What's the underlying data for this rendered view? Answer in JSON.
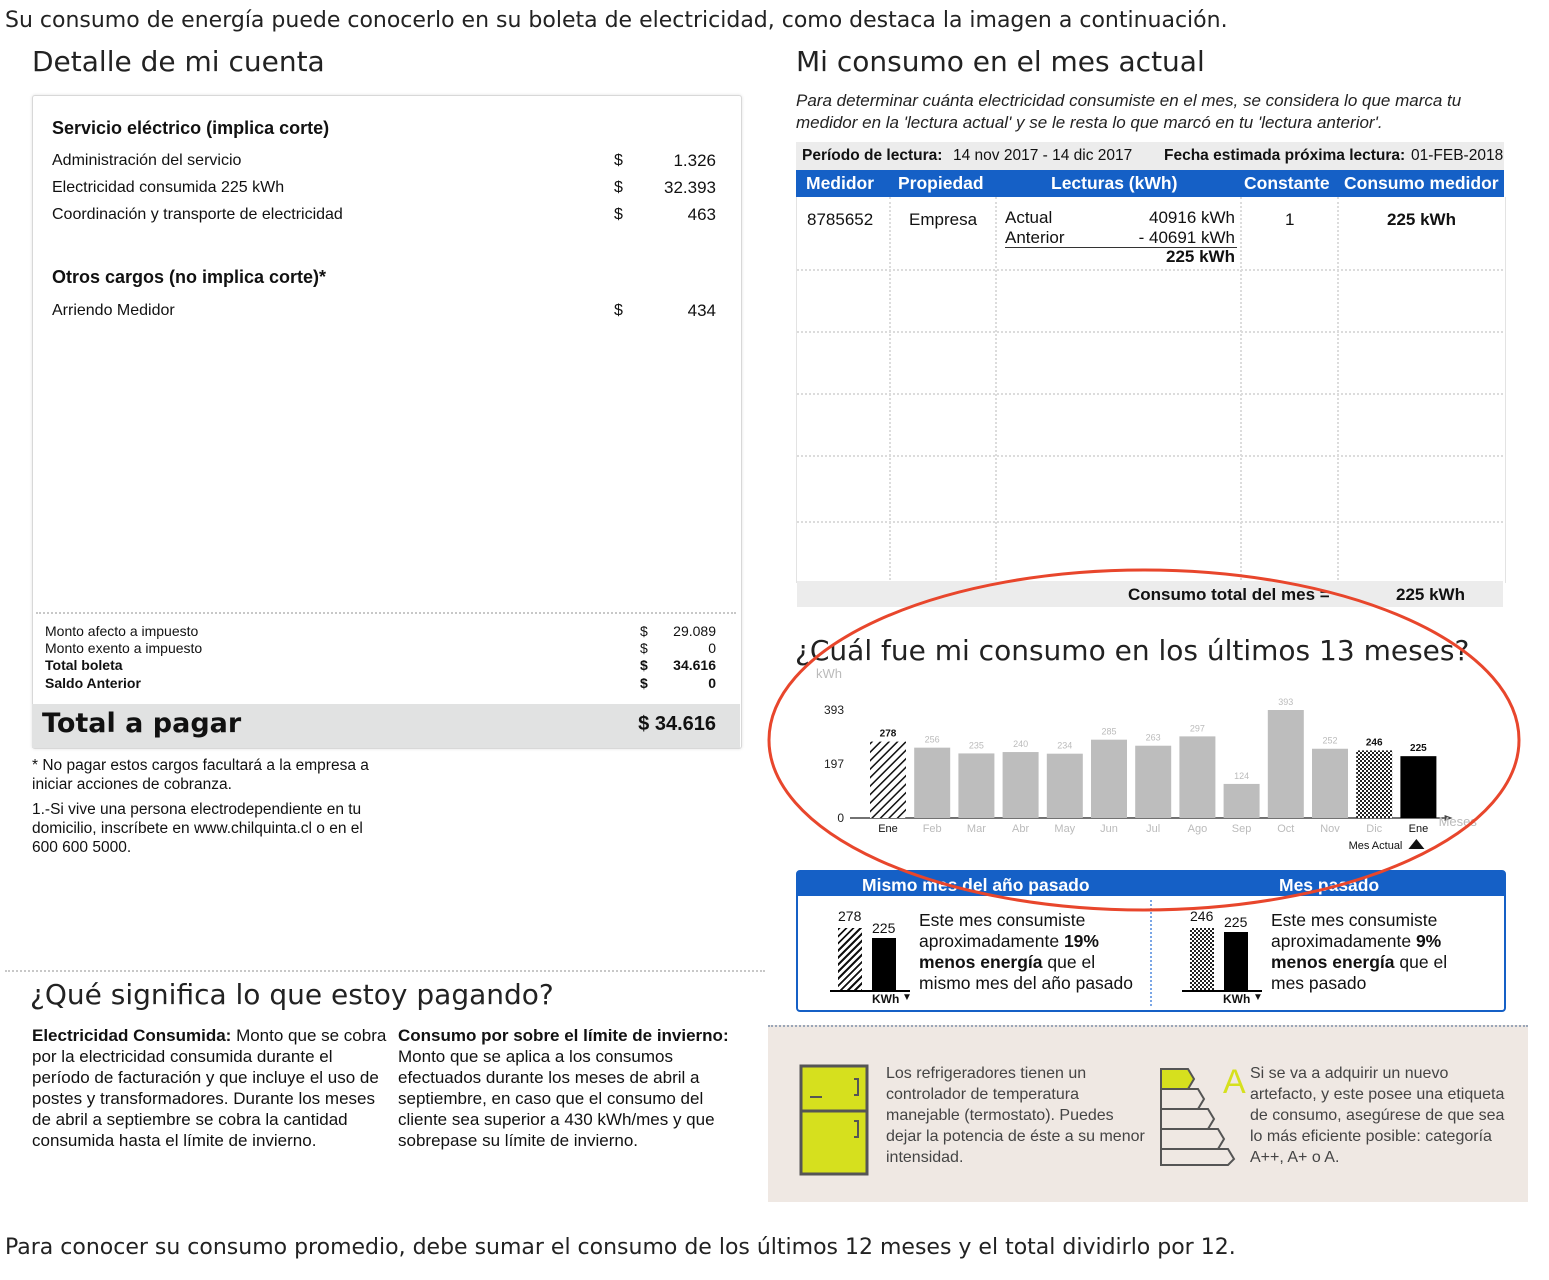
{
  "intro": "Su consumo de energía puede conocerlo en su boleta de electricidad, como destaca la imagen a continuación.",
  "outro": "Para conocer su consumo promedio, debe sumar el consumo de los últimos 12 meses y el total dividirlo por 12.",
  "account": {
    "title": "Detalle de mi cuenta",
    "service_title": "Servicio eléctrico (implica corte)",
    "service_items": [
      {
        "label": "Administración del servicio",
        "currency": "$",
        "amount": "1.326"
      },
      {
        "label": "Electricidad consumida  225 kWh",
        "currency": "$",
        "amount": "32.393"
      },
      {
        "label": "Coordinación y transporte de electricidad",
        "currency": "$",
        "amount": "463"
      }
    ],
    "other_title": "Otros cargos (no implica corte)*",
    "other_items": [
      {
        "label": "Arriendo Medidor",
        "currency": "$",
        "amount": "434"
      }
    ],
    "summary": [
      {
        "label": "Monto afecto a impuesto",
        "currency": "$",
        "amount": "29.089"
      },
      {
        "label": "Monto exento a impuesto",
        "currency": "$",
        "amount": "0"
      },
      {
        "label": "Total boleta",
        "currency": "$",
        "amount": "34.616"
      },
      {
        "label": "Saldo Anterior",
        "currency": "$",
        "amount": "0"
      }
    ],
    "total_label": "Total a pagar",
    "total_value": "$ 34.616",
    "note1": "* No pagar estos cargos facultará a la empresa a iniciar acciones de cobranza.",
    "note2": "1.-Si vive una persona electrodependiente en tu domicilio, inscríbete en www.chilquinta.cl o en el 600 600 5000."
  },
  "consumo": {
    "title": "Mi consumo en el mes actual",
    "desc": "Para determinar cuánta electricidad consumiste en el mes, se considera lo que marca tu medidor en la 'lectura actual' y se le resta lo que marcó en tu 'lectura anterior'.",
    "periodo_label": "Período de lectura:",
    "periodo_value": "14 nov 2017 - 14 dic 2017",
    "proxima_label": "Fecha estimada próxima lectura:",
    "proxima_value": "01-FEB-2018",
    "headers": [
      "Medidor",
      "Propiedad",
      "Lecturas (kWh)",
      "Constante",
      "Consumo medidor"
    ],
    "medidor": "8785652",
    "propiedad": "Empresa",
    "actual_label": "Actual",
    "actual_value": "40916 kWh",
    "anterior_label": "Anterior",
    "anterior_value": "- 40691 kWh",
    "diff_value": "225 kWh",
    "constante": "1",
    "consumo_medidor": "225 kWh",
    "total_label": "Consumo total del mes =",
    "total_value": "225 kWh"
  },
  "chart_title": "¿Cuál fue mi consumo en los últimos 13 meses?",
  "chart_data": {
    "type": "bar",
    "ylabel": "kWh",
    "xlabel": "Meses",
    "yticks": [
      "393",
      "197",
      "0"
    ],
    "ylim": [
      0,
      393
    ],
    "categories": [
      "Ene",
      "Feb",
      "Mar",
      "Abr",
      "May",
      "Jun",
      "Jul",
      "Ago",
      "Sep",
      "Oct",
      "Nov",
      "Dic",
      "Ene"
    ],
    "values": [
      278,
      256,
      235,
      240,
      234,
      285,
      263,
      297,
      124,
      393,
      252,
      246,
      225
    ],
    "value_labels": [
      "278",
      "256",
      "235",
      "240",
      "234",
      "285",
      "263",
      "297",
      "124",
      "393",
      "252",
      "246",
      "225"
    ],
    "styles": [
      "hatched",
      "gray",
      "gray",
      "gray",
      "gray",
      "gray",
      "gray",
      "gray",
      "gray",
      "gray",
      "gray",
      "checkered",
      "black"
    ],
    "current_label": "Mes Actual"
  },
  "compare": {
    "left_title": "Mismo mes del año pasado",
    "right_title": "Mes pasado",
    "left_prev": "278",
    "left_cur": "225",
    "right_prev": "246",
    "right_cur": "225",
    "unit": "KWh",
    "left_t1": "Este mes consumiste aproximadamente",
    "left_pct": "19%",
    "left_bold": "menos energía",
    "left_t2": "que el mismo mes del año pasado",
    "right_t1": "Este mes consumiste aproximadamente",
    "right_pct": "9%",
    "right_bold": "menos energía",
    "right_t2": "que el mes pasado"
  },
  "meaning": {
    "title": "¿Qué significa lo que estoy pagando?",
    "left_bold": "Electricidad Consumida:",
    "left_text": "Monto que se cobra por la electricidad consumida durante el período de facturación y que incluye el uso de postes y transformadores. Durante los meses de abril a septiembre se cobra la cantidad consumida hasta el límite de invierno.",
    "right_bold": "Consumo por sobre el límite de invierno:",
    "right_text": "Monto que se aplica a los consumos efectuados durante los meses de abril a septiembre, en caso que el consumo del cliente sea superior a 430 kWh/mes y que sobrepase su límite de invierno."
  },
  "tips": {
    "fridge": "Los refrigeradores tienen un controlador de temperatura manejable (termostato). Puedes dejar la potencia de éste a su menor intensidad.",
    "label_letter": "A",
    "appliance": "Si se va a adquirir un nuevo artefacto, y este posee una etiqueta de consumo, asegúrese de que sea lo más eficiente posible: categoría A++, A+ o A."
  },
  "colors": {
    "blue": "#1560c6",
    "highlight": "#e8462c",
    "bar_gray": "#bdbdbd",
    "fridge": "#d6e01e",
    "tips_bg": "#efe8e3"
  }
}
